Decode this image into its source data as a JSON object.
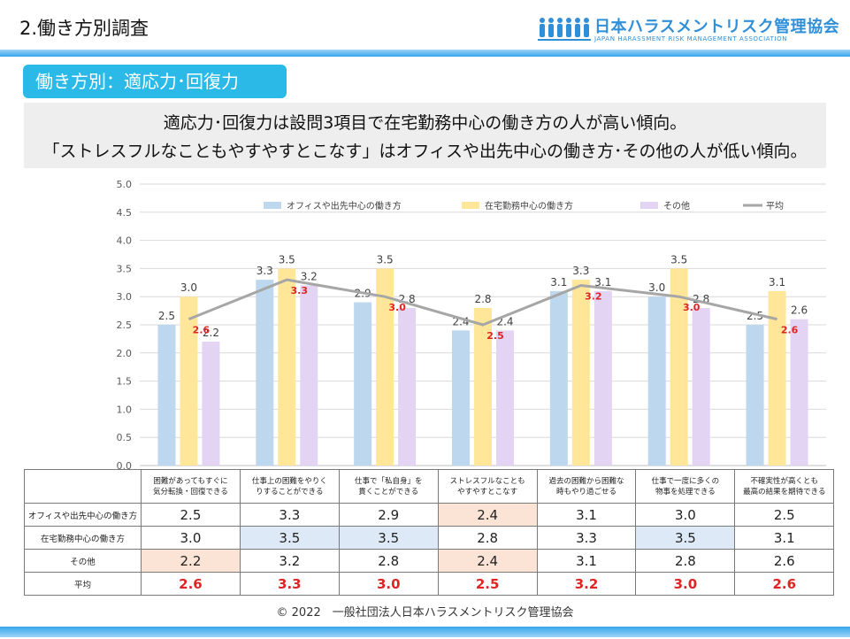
{
  "header": {
    "title": "2.働き方別調査"
  },
  "logo": {
    "name": "日本ハラスメントリスク管理協会",
    "subtitle": "JAPAN HARASSMENT RISK MANAGEMENT ASSOCIATION"
  },
  "section": {
    "label": "働き方別：適応力･回復力"
  },
  "summary": {
    "line1": "適応力･回復力は設問3項目で在宅勤務中心の働き方の人が高い傾向。",
    "line2": "「ストレスフルなこともやすやすとこなす」はオフィスや出先中心の働き方･その他の人が低い傾向。"
  },
  "colors": {
    "office": "#bdd7ee",
    "remote": "#ffe699",
    "other": "#e4d4f4",
    "average": "#a6a6a6",
    "avg_label": "#e02424",
    "highlight_blue": "#dde9f6",
    "highlight_orange": "#fbe3d6"
  },
  "chart_data": {
    "type": "bar",
    "ylim": [
      0.0,
      5.0
    ],
    "yticks": [
      "0.0",
      "0.5",
      "1.0",
      "1.5",
      "2.0",
      "2.5",
      "3.0",
      "3.5",
      "4.0",
      "4.5",
      "5.0"
    ],
    "legend_position": "top",
    "grid": true,
    "categories": [
      [
        "困難があってもすぐに",
        "気分転換・回復できる"
      ],
      [
        "仕事上の困難をやりく",
        "りすることができる"
      ],
      [
        "仕事で「私自身」を",
        "貫くことができる"
      ],
      [
        "ストレスフルなことも",
        "やすやすとこなす"
      ],
      [
        "過去の困難から困難な",
        "時もやり過ごせる"
      ],
      [
        "仕事で一度に多くの",
        "物事を処理できる"
      ],
      [
        "不確実性が高くとも",
        "最高の結果を期待できる"
      ]
    ],
    "series": [
      {
        "name": "オフィスや出先中心の働き方",
        "type": "bar",
        "values": [
          2.5,
          3.3,
          2.9,
          2.4,
          3.1,
          3.0,
          2.5
        ]
      },
      {
        "name": "在宅勤務中心の働き方",
        "type": "bar",
        "values": [
          3.0,
          3.5,
          3.5,
          2.8,
          3.3,
          3.5,
          3.1
        ]
      },
      {
        "name": "その他",
        "type": "bar",
        "values": [
          2.2,
          3.2,
          2.8,
          2.4,
          3.1,
          2.8,
          2.6
        ]
      },
      {
        "name": "平均",
        "type": "line",
        "values": [
          2.6,
          3.3,
          3.0,
          2.5,
          3.2,
          3.0,
          2.6
        ]
      }
    ]
  },
  "table": {
    "rows": [
      {
        "label": "オフィスや出先中心の働き方",
        "values": [
          "2.5",
          "3.3",
          "2.9",
          "2.4",
          "3.1",
          "3.0",
          "2.5"
        ],
        "highlight": [
          null,
          null,
          null,
          "orange",
          null,
          null,
          null
        ]
      },
      {
        "label": "在宅勤務中心の働き方",
        "values": [
          "3.0",
          "3.5",
          "3.5",
          "2.8",
          "3.3",
          "3.5",
          "3.1"
        ],
        "highlight": [
          null,
          "blue",
          "blue",
          null,
          null,
          "blue",
          null
        ]
      },
      {
        "label": "その他",
        "values": [
          "2.2",
          "3.2",
          "2.8",
          "2.4",
          "3.1",
          "2.8",
          "2.6"
        ],
        "highlight": [
          "orange",
          null,
          null,
          "orange",
          null,
          null,
          null
        ]
      },
      {
        "label": "平均",
        "values": [
          "2.6",
          "3.3",
          "3.0",
          "2.5",
          "3.2",
          "3.0",
          "2.6"
        ],
        "highlight": [
          null,
          null,
          null,
          null,
          null,
          null,
          null
        ]
      }
    ]
  },
  "footer": {
    "copyright": "© 2022　一般社団法人日本ハラスメントリスク管理協会"
  }
}
